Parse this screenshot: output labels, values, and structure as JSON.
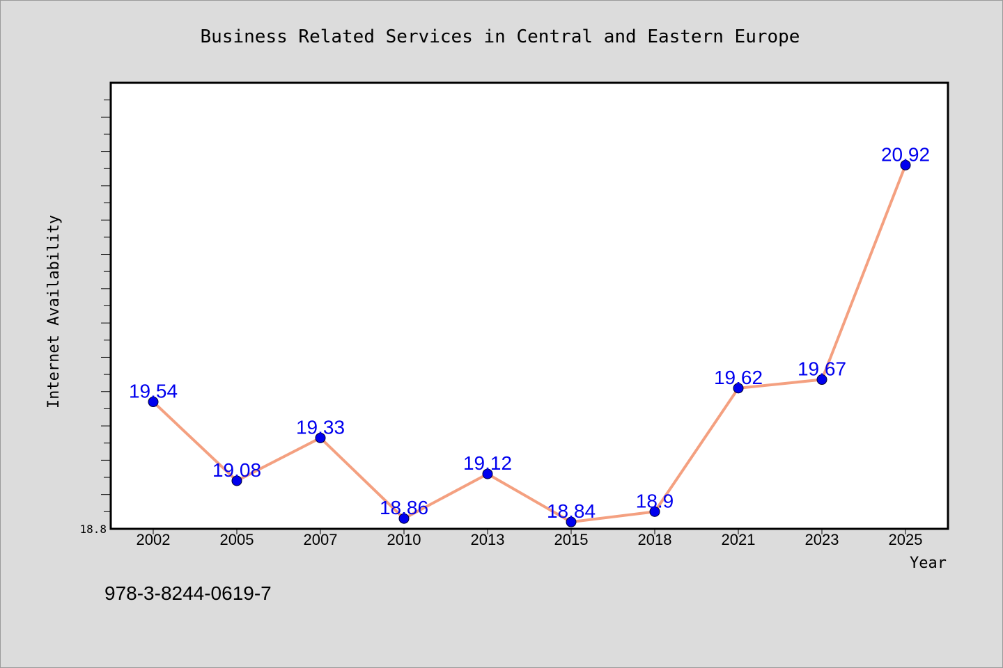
{
  "chart_data": {
    "type": "line",
    "title": "Business Related Services in Central and Eastern Europe",
    "xlabel": "Year",
    "ylabel": "Internet Availability",
    "categories": [
      "2002",
      "2005",
      "2007",
      "2010",
      "2013",
      "2015",
      "2018",
      "2021",
      "2023",
      "2025"
    ],
    "values": [
      19.54,
      19.08,
      19.33,
      18.86,
      19.12,
      18.84,
      18.9,
      19.62,
      19.67,
      20.92
    ],
    "data_labels": [
      "19.54",
      "19.08",
      "19.33",
      "18.86",
      "19.12",
      "18.84",
      "18.9",
      "19.62",
      "19.67",
      "20.92"
    ],
    "ylim": [
      18.8,
      21.4
    ],
    "y_min_label": "18.8",
    "grid": false,
    "line_color": "#f4a080",
    "marker_color": "#0000ee",
    "label_color": "#0000ee"
  },
  "footer": {
    "isbn": "978-3-8244-0619-7"
  }
}
